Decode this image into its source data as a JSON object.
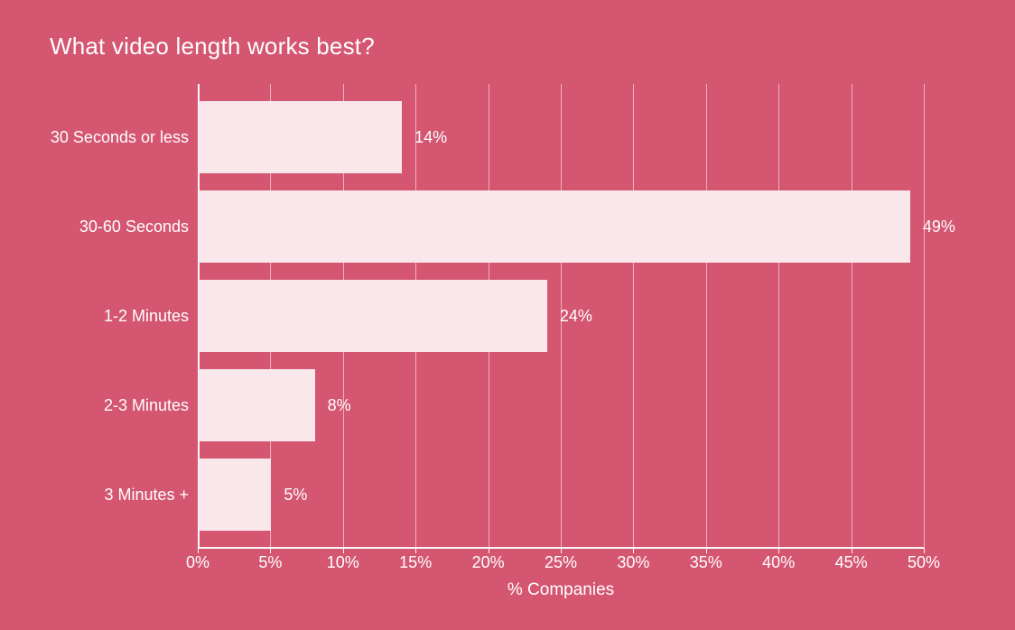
{
  "chart_data": {
    "type": "bar",
    "orientation": "horizontal",
    "title": "What video length works best?",
    "categories": [
      "30 Seconds or less",
      "30-60 Seconds",
      "1-2 Minutes",
      "2-3 Minutes",
      "3 Minutes +"
    ],
    "values": [
      14,
      49,
      24,
      8,
      5
    ],
    "value_labels": [
      "14%",
      "49%",
      "24%",
      "8%",
      "5%"
    ],
    "xlabel": "% Companies",
    "ylabel": "",
    "xlim": [
      0,
      50
    ],
    "x_ticks": [
      0,
      5,
      10,
      15,
      20,
      25,
      30,
      35,
      40,
      45,
      50
    ],
    "x_tick_labels": [
      "0%",
      "5%",
      "10%",
      "15%",
      "20%",
      "25%",
      "30%",
      "35%",
      "40%",
      "45%",
      "50%"
    ],
    "grid": "vertical-only",
    "legend": "none",
    "colors": {
      "background": "#d45671",
      "bar_fill": "#f9e7ec",
      "grid_line": "rgba(255,255,255,0.55)",
      "axis_line": "#ffffff",
      "text": "#ffffff"
    }
  }
}
